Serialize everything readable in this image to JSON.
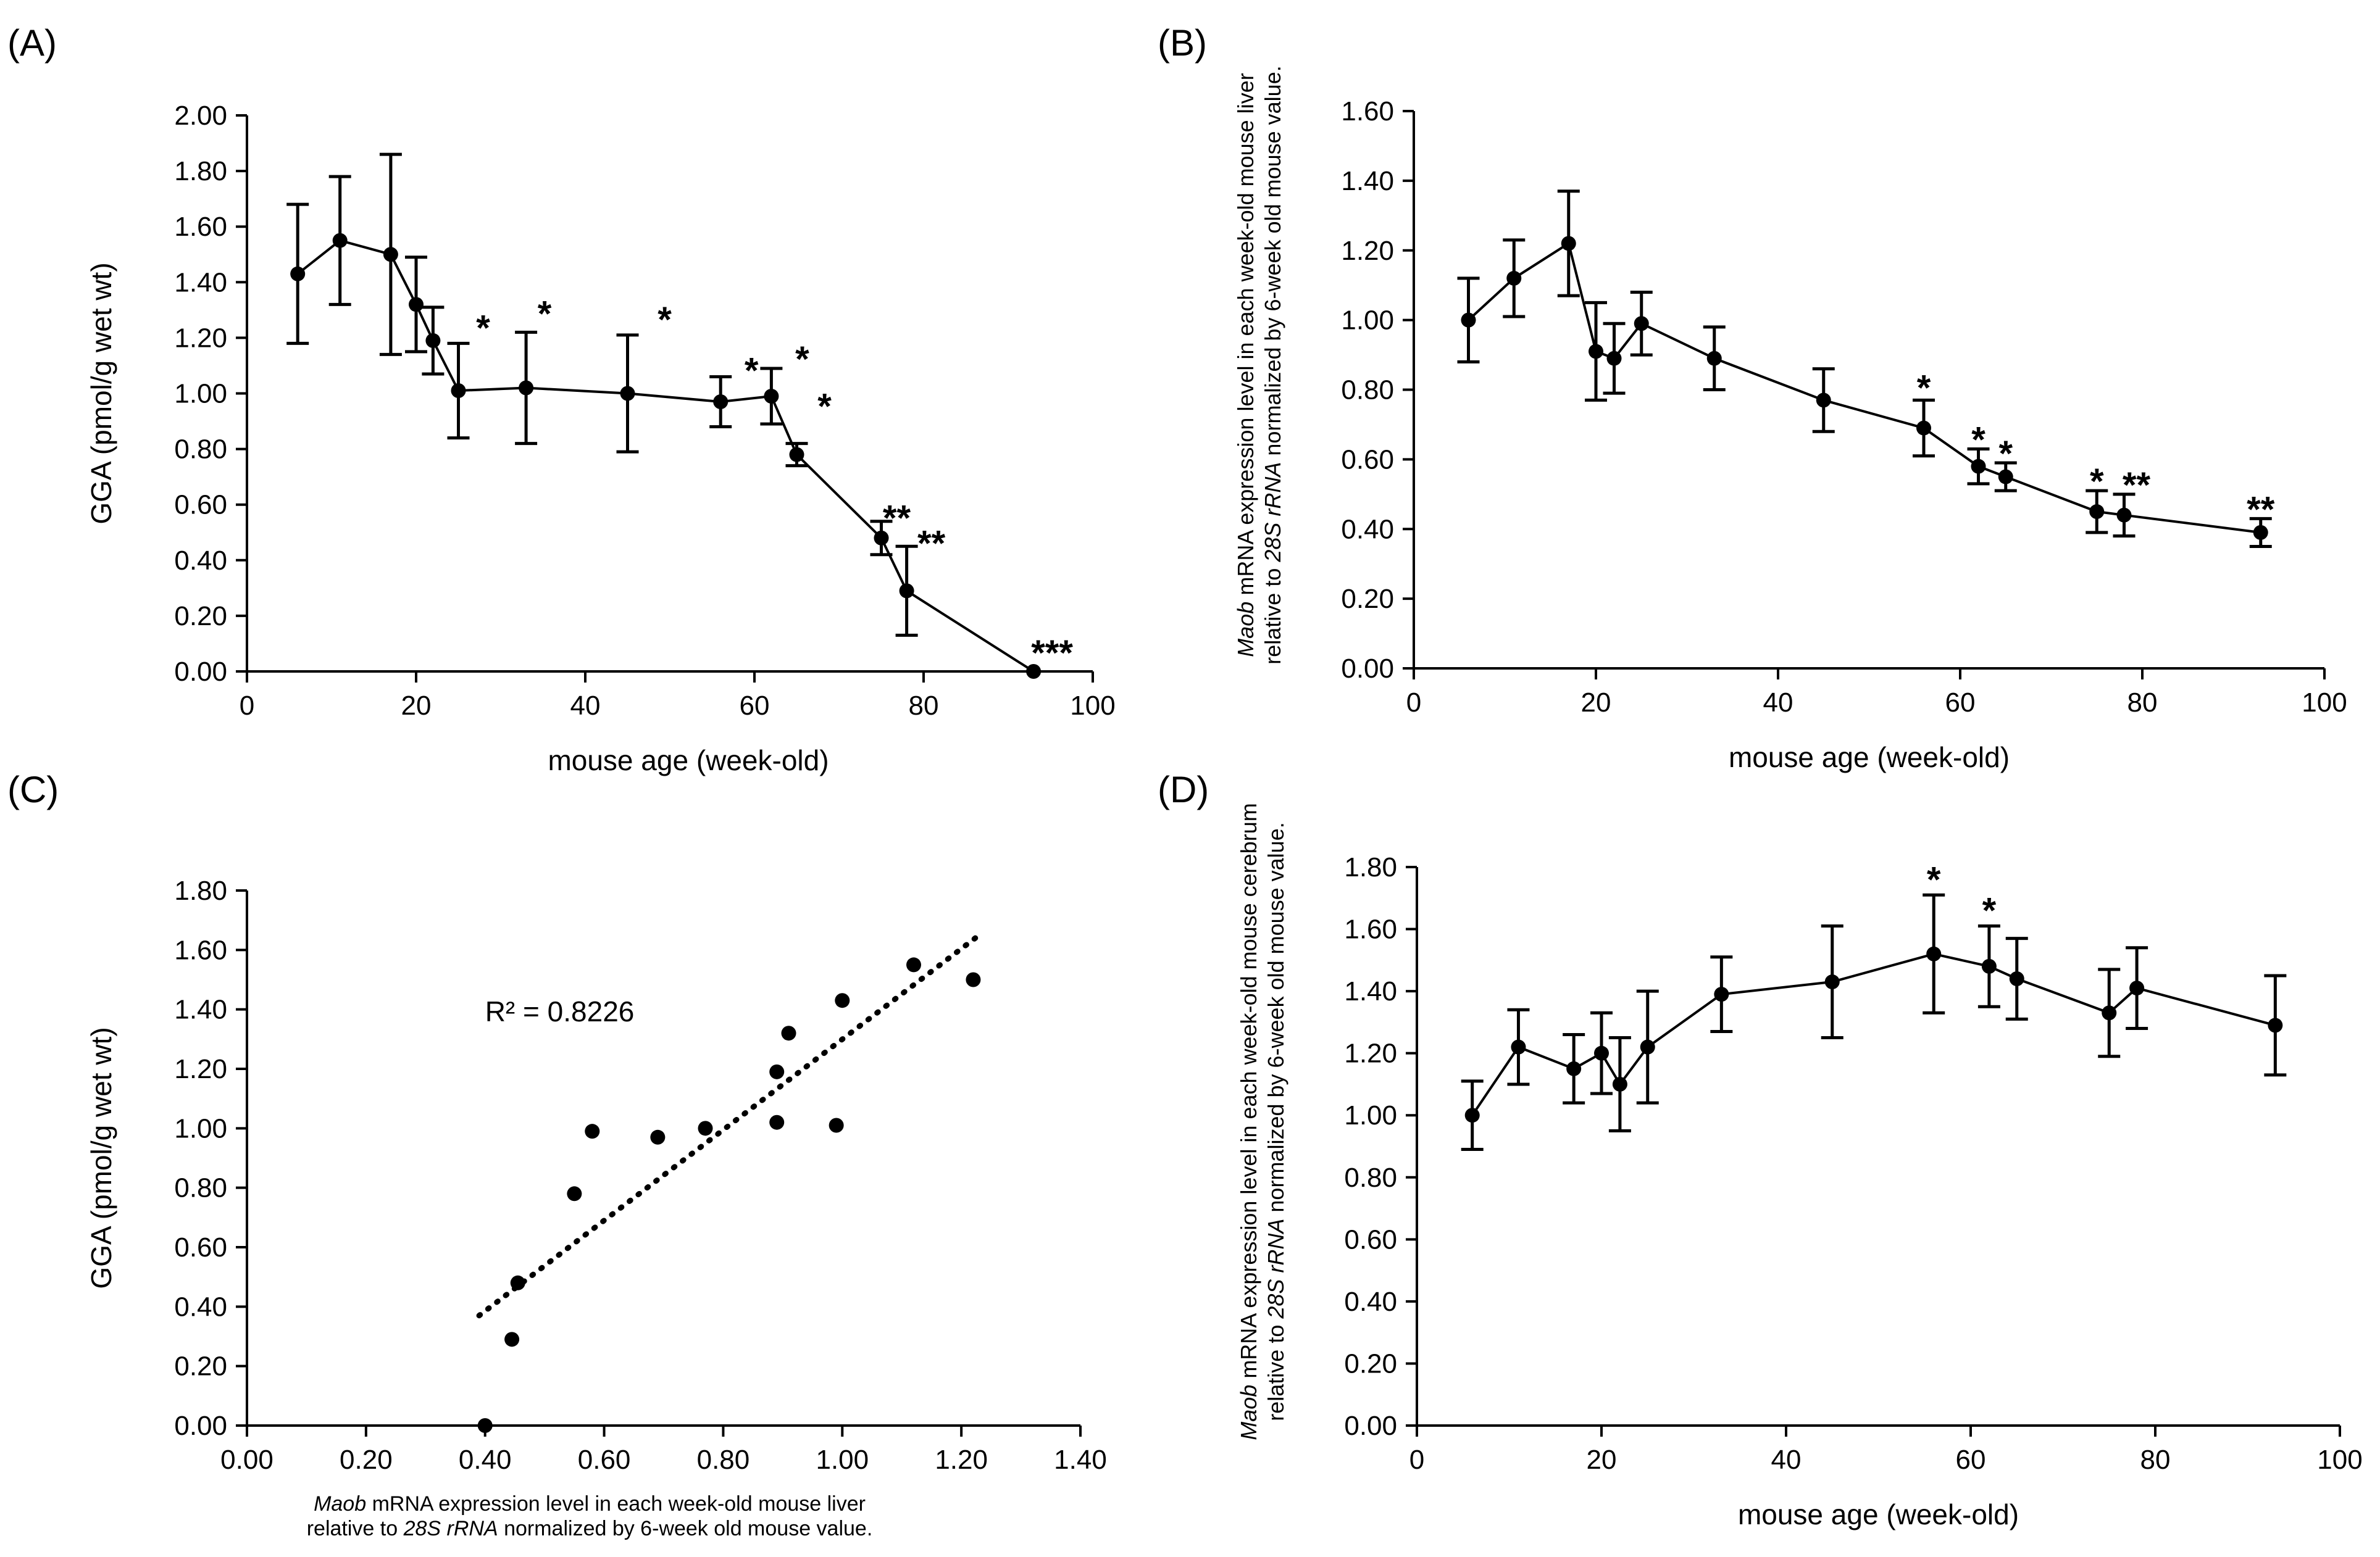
{
  "chart_data": [
    {
      "panel": "(A)",
      "type": "line",
      "xlabel": "mouse age (week-old)",
      "ylabel": "GGA (pmol/g wet wt)",
      "xlim": [
        0,
        100
      ],
      "ylim": [
        0,
        2.0
      ],
      "xticks": [
        "0",
        "20",
        "40",
        "60",
        "80",
        "100"
      ],
      "yticks": [
        "0.00",
        "0.20",
        "0.40",
        "0.60",
        "0.80",
        "1.00",
        "1.20",
        "1.40",
        "1.60",
        "1.80",
        "2.00"
      ],
      "points": [
        {
          "x": 6,
          "y": 1.43,
          "err": 0.25,
          "sig": ""
        },
        {
          "x": 11,
          "y": 1.55,
          "err": 0.23,
          "sig": ""
        },
        {
          "x": 17,
          "y": 1.5,
          "err": 0.36,
          "sig": ""
        },
        {
          "x": 20,
          "y": 1.32,
          "err": 0.17,
          "sig": ""
        },
        {
          "x": 22,
          "y": 1.19,
          "err": 0.12,
          "sig": ""
        },
        {
          "x": 25,
          "y": 1.01,
          "err": 0.17,
          "sig": "*"
        },
        {
          "x": 33,
          "y": 1.02,
          "err": 0.2,
          "sig": "*"
        },
        {
          "x": 45,
          "y": 1.0,
          "err": 0.21,
          "sig": "*"
        },
        {
          "x": 56,
          "y": 0.97,
          "err": 0.09,
          "sig": "*"
        },
        {
          "x": 62,
          "y": 0.99,
          "err": 0.1,
          "sig": "*"
        },
        {
          "x": 65,
          "y": 0.78,
          "err": 0.04,
          "sig": "*"
        },
        {
          "x": 75,
          "y": 0.48,
          "err": 0.06,
          "sig": "**"
        },
        {
          "x": 78,
          "y": 0.29,
          "err": 0.16,
          "sig": "**"
        },
        {
          "x": 93,
          "y": 0.0,
          "err": 0.0,
          "sig": "***"
        }
      ]
    },
    {
      "panel": "(B)",
      "type": "line",
      "xlabel": "mouse age (week-old)",
      "ylabel_lines": [
        "Maob mRNA expression level in each week-old mouse liver",
        "relative to 28S rRNA normalized by 6-week old mouse value."
      ],
      "xlim": [
        0,
        100
      ],
      "ylim": [
        0,
        1.6
      ],
      "xticks": [
        "0",
        "20",
        "40",
        "60",
        "80",
        "100"
      ],
      "yticks": [
        "0.00",
        "0.20",
        "0.40",
        "0.60",
        "0.80",
        "1.00",
        "1.20",
        "1.40",
        "1.60"
      ],
      "points": [
        {
          "x": 6,
          "y": 1.0,
          "err": 0.12,
          "sig": ""
        },
        {
          "x": 11,
          "y": 1.12,
          "err": 0.11,
          "sig": ""
        },
        {
          "x": 17,
          "y": 1.22,
          "err": 0.15,
          "sig": ""
        },
        {
          "x": 20,
          "y": 0.91,
          "err": 0.14,
          "sig": ""
        },
        {
          "x": 22,
          "y": 0.89,
          "err": 0.1,
          "sig": ""
        },
        {
          "x": 25,
          "y": 0.99,
          "err": 0.09,
          "sig": ""
        },
        {
          "x": 33,
          "y": 0.89,
          "err": 0.09,
          "sig": ""
        },
        {
          "x": 45,
          "y": 0.77,
          "err": 0.09,
          "sig": ""
        },
        {
          "x": 56,
          "y": 0.69,
          "err": 0.08,
          "sig": "*"
        },
        {
          "x": 62,
          "y": 0.58,
          "err": 0.05,
          "sig": "*"
        },
        {
          "x": 65,
          "y": 0.55,
          "err": 0.04,
          "sig": "*"
        },
        {
          "x": 75,
          "y": 0.45,
          "err": 0.06,
          "sig": "*"
        },
        {
          "x": 78,
          "y": 0.44,
          "err": 0.06,
          "sig": "**"
        },
        {
          "x": 93,
          "y": 0.39,
          "err": 0.04,
          "sig": "**"
        }
      ]
    },
    {
      "panel": "(C)",
      "type": "scatter",
      "xlabel_lines": [
        "Maob mRNA expression level in each week-old mouse liver",
        "relative to 28S rRNA normalized by 6-week old mouse value."
      ],
      "ylabel": "GGA (pmol/g wet wt)",
      "xlim": [
        0,
        1.4
      ],
      "ylim": [
        0,
        1.8
      ],
      "xticks": [
        "0.00",
        "0.20",
        "0.40",
        "0.60",
        "0.80",
        "1.00",
        "1.20",
        "1.40"
      ],
      "yticks": [
        "0.00",
        "0.20",
        "0.40",
        "0.60",
        "0.80",
        "1.00",
        "1.20",
        "1.40",
        "1.60",
        "1.80"
      ],
      "annotation": "R² = 0.8226",
      "trendline": {
        "x": [
          0.39,
          1.23
        ],
        "y": [
          0.37,
          1.65
        ]
      },
      "points": [
        {
          "x": 0.4,
          "y": 0.0
        },
        {
          "x": 0.445,
          "y": 0.29
        },
        {
          "x": 0.455,
          "y": 0.48
        },
        {
          "x": 0.55,
          "y": 0.78
        },
        {
          "x": 0.58,
          "y": 0.99
        },
        {
          "x": 0.69,
          "y": 0.97
        },
        {
          "x": 0.77,
          "y": 1.0
        },
        {
          "x": 0.89,
          "y": 1.02
        },
        {
          "x": 0.89,
          "y": 1.19
        },
        {
          "x": 0.91,
          "y": 1.32
        },
        {
          "x": 0.99,
          "y": 1.01
        },
        {
          "x": 1.0,
          "y": 1.43
        },
        {
          "x": 1.12,
          "y": 1.55
        },
        {
          "x": 1.22,
          "y": 1.5
        }
      ]
    },
    {
      "panel": "(D)",
      "type": "line",
      "xlabel": "mouse age (week-old)",
      "ylabel_lines": [
        "Maob mRNA expression level in each week-old mouse cerebrum",
        "relative to 28S rRNA normalized by 6-week old mouse value."
      ],
      "xlim": [
        0,
        100
      ],
      "ylim": [
        0,
        1.8
      ],
      "xticks": [
        "0",
        "20",
        "40",
        "60",
        "80",
        "100"
      ],
      "yticks": [
        "0.00",
        "0.20",
        "0.40",
        "0.60",
        "0.80",
        "1.00",
        "1.20",
        "1.40",
        "1.60",
        "1.80"
      ],
      "points": [
        {
          "x": 6,
          "y": 1.0,
          "err": 0.11,
          "sig": ""
        },
        {
          "x": 11,
          "y": 1.22,
          "err": 0.12,
          "sig": ""
        },
        {
          "x": 17,
          "y": 1.15,
          "err": 0.11,
          "sig": ""
        },
        {
          "x": 20,
          "y": 1.2,
          "err": 0.13,
          "sig": ""
        },
        {
          "x": 22,
          "y": 1.1,
          "err": 0.15,
          "sig": ""
        },
        {
          "x": 25,
          "y": 1.22,
          "err": 0.18,
          "sig": ""
        },
        {
          "x": 33,
          "y": 1.39,
          "err": 0.12,
          "sig": ""
        },
        {
          "x": 45,
          "y": 1.43,
          "err": 0.18,
          "sig": ""
        },
        {
          "x": 56,
          "y": 1.52,
          "err": 0.19,
          "sig": "*"
        },
        {
          "x": 62,
          "y": 1.48,
          "err": 0.13,
          "sig": "*"
        },
        {
          "x": 65,
          "y": 1.44,
          "err": 0.13,
          "sig": ""
        },
        {
          "x": 75,
          "y": 1.33,
          "err": 0.14,
          "sig": ""
        },
        {
          "x": 78,
          "y": 1.41,
          "err": 0.13,
          "sig": ""
        },
        {
          "x": 93,
          "y": 1.29,
          "err": 0.16,
          "sig": ""
        }
      ]
    }
  ]
}
